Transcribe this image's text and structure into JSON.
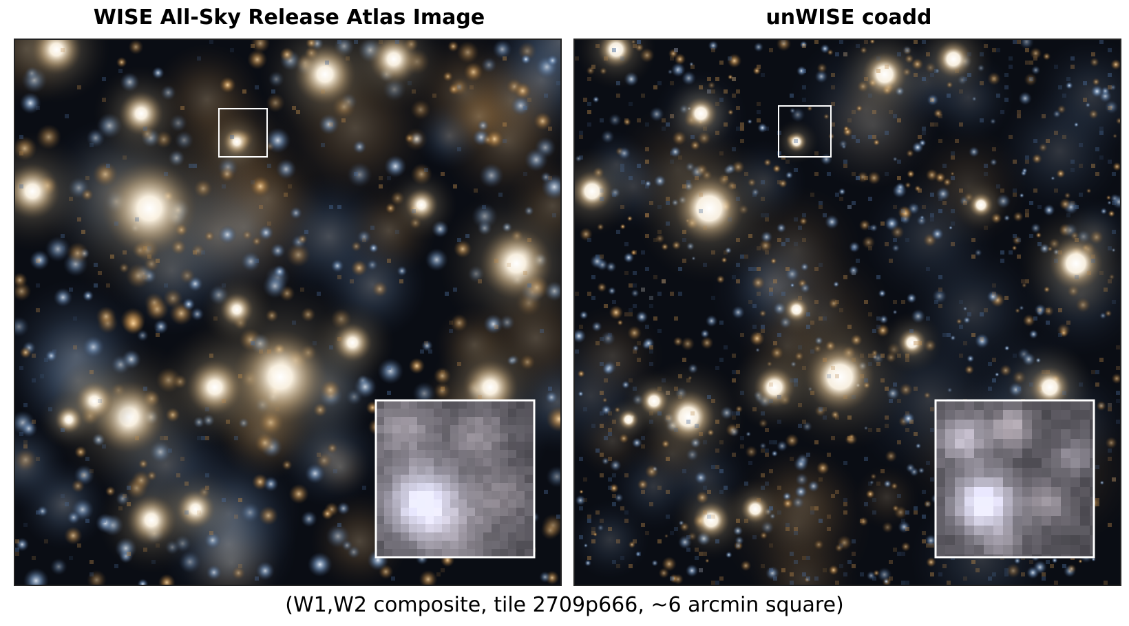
{
  "figure": {
    "left_title": "WISE All-Sky Release Atlas Image",
    "right_title": "unWISE coadd",
    "caption": "(W1,W2 composite, tile 2709p666, ~6 arcmin square)"
  },
  "panels": {
    "left": {
      "rendering": "blurred",
      "pixelation": "low",
      "inset_zoom": "true"
    },
    "right": {
      "rendering": "sharp",
      "pixelation": "high",
      "inset_zoom": "true"
    }
  },
  "colors": {
    "sky_background": "#0a0d14",
    "blue_tint": "#4a6a96",
    "orange_tint": "#b8884c",
    "frame_white": "#ffffff",
    "frame_border": "#222222"
  }
}
